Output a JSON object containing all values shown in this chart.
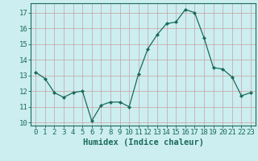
{
  "x": [
    0,
    1,
    2,
    3,
    4,
    5,
    6,
    7,
    8,
    9,
    10,
    11,
    12,
    13,
    14,
    15,
    16,
    17,
    18,
    19,
    20,
    21,
    22,
    23
  ],
  "y": [
    13.2,
    12.8,
    11.9,
    11.6,
    11.9,
    12.0,
    10.1,
    11.1,
    11.3,
    11.3,
    11.0,
    13.1,
    14.7,
    15.6,
    16.3,
    16.4,
    17.2,
    17.0,
    15.4,
    13.5,
    13.4,
    12.9,
    11.7,
    11.9
  ],
  "xlabel": "Humidex (Indice chaleur)",
  "ylim": [
    9.8,
    17.6
  ],
  "xlim": [
    -0.5,
    23.5
  ],
  "yticks": [
    10,
    11,
    12,
    13,
    14,
    15,
    16,
    17
  ],
  "xticks": [
    0,
    1,
    2,
    3,
    4,
    5,
    6,
    7,
    8,
    9,
    10,
    11,
    12,
    13,
    14,
    15,
    16,
    17,
    18,
    19,
    20,
    21,
    22,
    23
  ],
  "line_color": "#1a6b5a",
  "marker_color": "#1a6b5a",
  "bg_color": "#cceef0",
  "grid_color": "#c8a0a0",
  "axes_color": "#1a6b5a",
  "tick_label_color": "#1a6b5a",
  "xlabel_color": "#1a6b5a",
  "xlabel_fontsize": 7.5,
  "tick_fontsize": 6.5
}
